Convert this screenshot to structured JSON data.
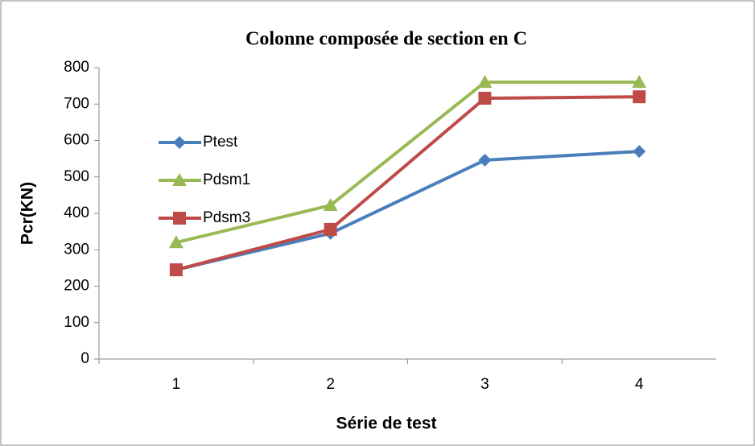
{
  "chart_data": {
    "type": "line",
    "title": "Colonne composée de section en C",
    "x_label": "Série de test",
    "y_label": "Pcr(KN)",
    "categories": [
      "1",
      "2",
      "3",
      "4"
    ],
    "series": [
      {
        "name": "Ptest",
        "color": "#4a7ebb",
        "marker": "diamond",
        "values": [
          245,
          345,
          546,
          570
        ]
      },
      {
        "name": "Pdsm1",
        "color": "#98b954",
        "marker": "triangle",
        "values": [
          320,
          422,
          760,
          760
        ]
      },
      {
        "name": "Pdsm3",
        "color": "#be4b48",
        "marker": "square",
        "values": [
          245,
          356,
          716,
          720
        ]
      }
    ],
    "ylim": [
      0,
      800
    ],
    "yticks": [
      0,
      100,
      200,
      300,
      400,
      500,
      600,
      700,
      800
    ],
    "grid": false,
    "legend": "left"
  }
}
